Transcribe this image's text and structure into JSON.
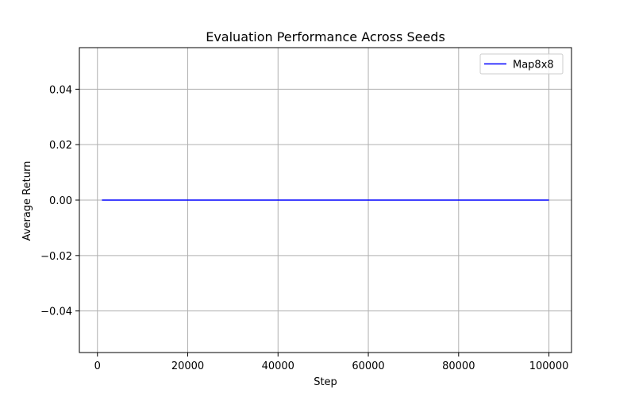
{
  "chart_data": {
    "type": "line",
    "title": "Evaluation Performance Across Seeds",
    "xlabel": "Step",
    "ylabel": "Average Return",
    "xlim": [
      -4000,
      105000
    ],
    "ylim": [
      -0.055,
      0.055
    ],
    "xticks": [
      0,
      20000,
      40000,
      60000,
      80000,
      100000
    ],
    "xtick_labels": [
      "0",
      "20000",
      "40000",
      "60000",
      "80000",
      "100000"
    ],
    "yticks": [
      -0.04,
      -0.02,
      0.0,
      0.02,
      0.04
    ],
    "ytick_labels": [
      "−0.04",
      "−0.02",
      "0.00",
      "0.02",
      "0.04"
    ],
    "grid": true,
    "legend_position": "top-right",
    "series": [
      {
        "name": "Map8x8",
        "color": "#0000ff",
        "x": [
          1000,
          100000
        ],
        "y": [
          0.0,
          0.0
        ]
      }
    ]
  }
}
